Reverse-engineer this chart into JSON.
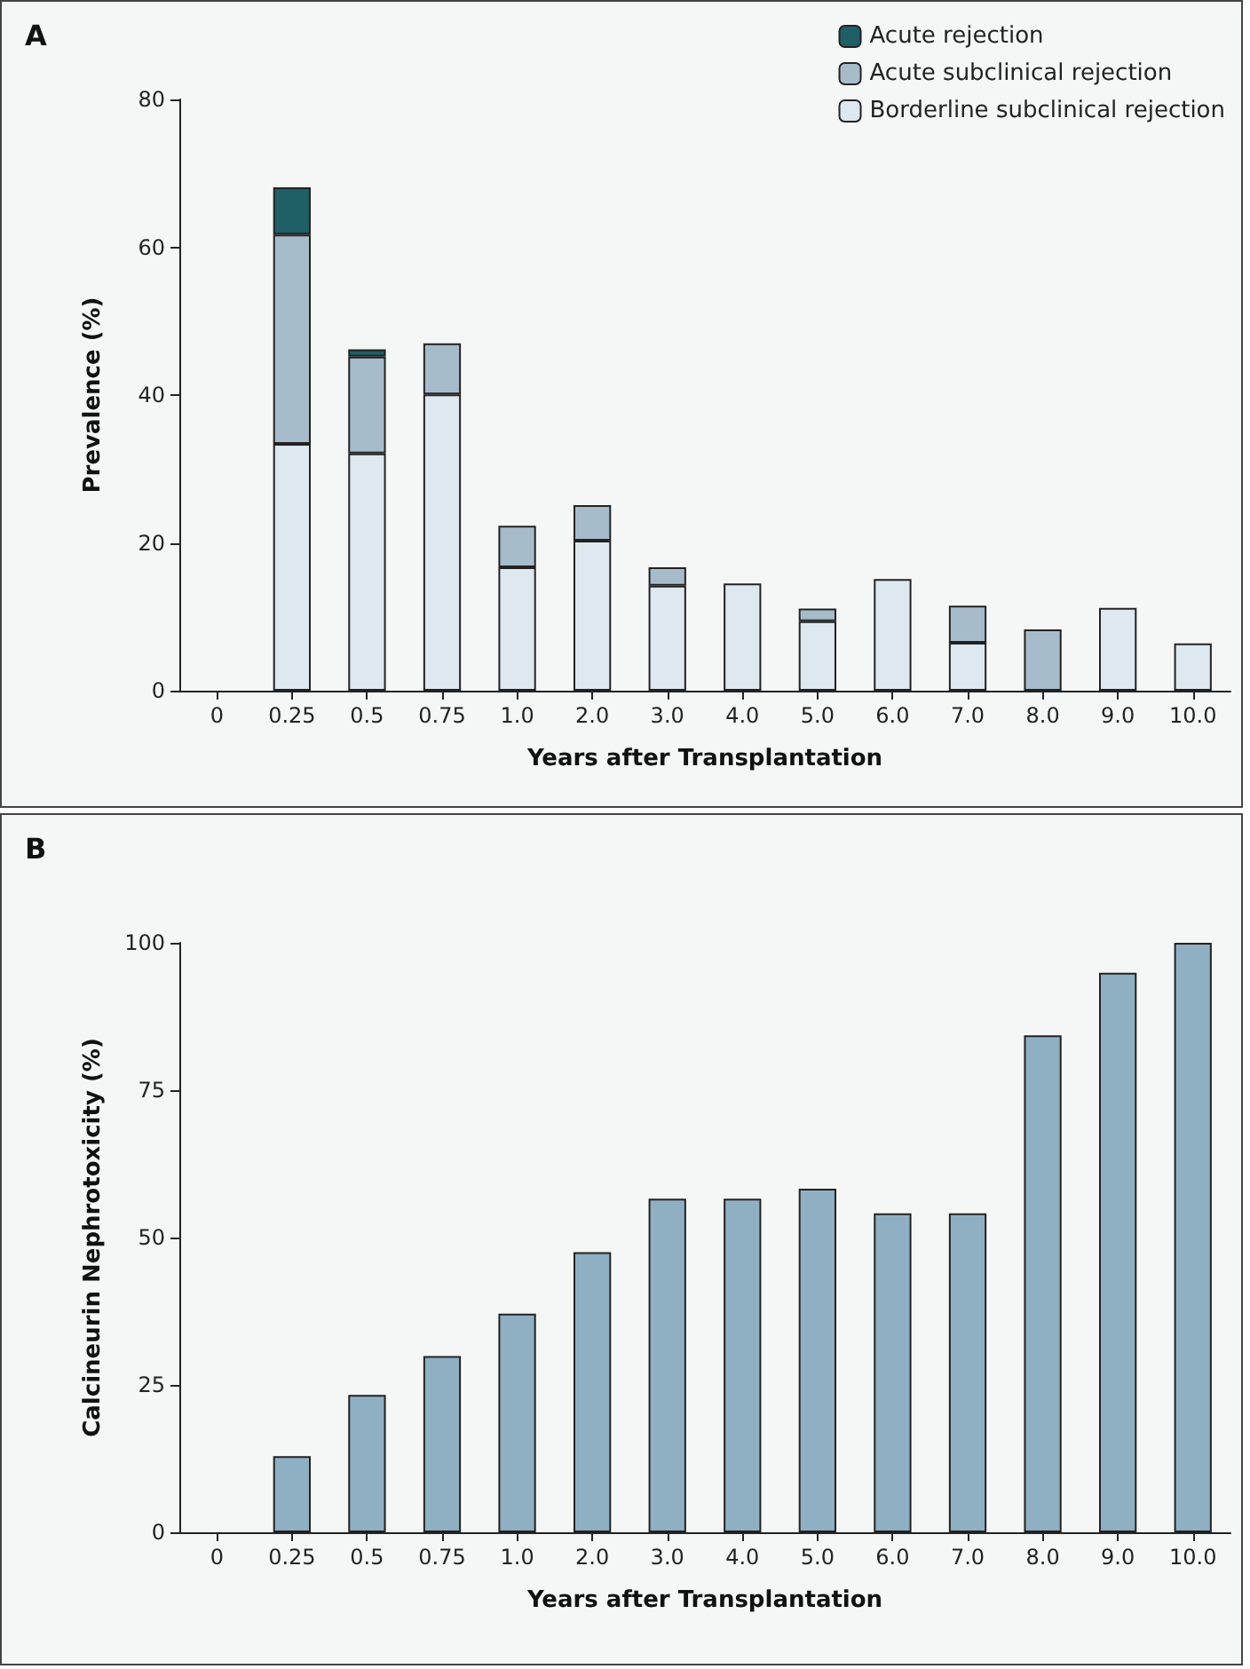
{
  "chart_data": [
    {
      "type": "bar",
      "title": "A",
      "xlabel": "Years after Transplantation",
      "ylabel": "Prevalence (%)",
      "stacked": true,
      "legend": "top right",
      "grid": false,
      "categories": [
        "0",
        "0.25",
        "0.5",
        "0.75",
        "1.0",
        "2.0",
        "3.0",
        "4.0",
        "5.0",
        "6.0",
        "7.0",
        "8.0",
        "9.0",
        "10.0"
      ],
      "ylim": [
        0,
        80
      ],
      "yticks": [
        0,
        20,
        40,
        60,
        80
      ],
      "series": [
        {
          "name": "Borderline subclinical rejection",
          "color": "#dde8ef",
          "values": [
            null,
            33.4,
            32.1,
            40.1,
            16.7,
            20.3,
            14.2,
            14.5,
            9.4,
            15.1,
            6.5,
            0,
            11.2,
            6.4
          ]
        },
        {
          "name": "Acute subclinical rejection",
          "color": "#a7bccb",
          "values": [
            null,
            28.3,
            13.1,
            6.9,
            5.6,
            4.8,
            2.5,
            0,
            1.7,
            0,
            5.0,
            8.3,
            0,
            0
          ]
        },
        {
          "name": "Acute rejection",
          "color": "#1f5f66",
          "values": [
            null,
            6.4,
            1.0,
            0,
            0,
            0,
            0,
            0,
            0,
            0,
            0,
            0,
            0,
            0
          ]
        }
      ]
    },
    {
      "type": "bar",
      "title": "B",
      "xlabel": "Years after Transplantation",
      "ylabel": "Calcineurin Nephrotoxicity (%)",
      "legend": false,
      "grid": false,
      "categories": [
        "0",
        "0.25",
        "0.5",
        "0.75",
        "1.0",
        "2.0",
        "3.0",
        "4.0",
        "5.0",
        "6.0",
        "7.0",
        "8.0",
        "9.0",
        "10.0"
      ],
      "ylim": [
        0,
        100
      ],
      "yticks": [
        0,
        25,
        50,
        75,
        100
      ],
      "series": [
        {
          "color": "#8fb0c3",
          "values": [
            null,
            12.9,
            23.3,
            29.9,
            37.1,
            47.5,
            56.6,
            56.6,
            58.3,
            54.1,
            54.1,
            84.3,
            94.9,
            100
          ]
        }
      ]
    }
  ]
}
